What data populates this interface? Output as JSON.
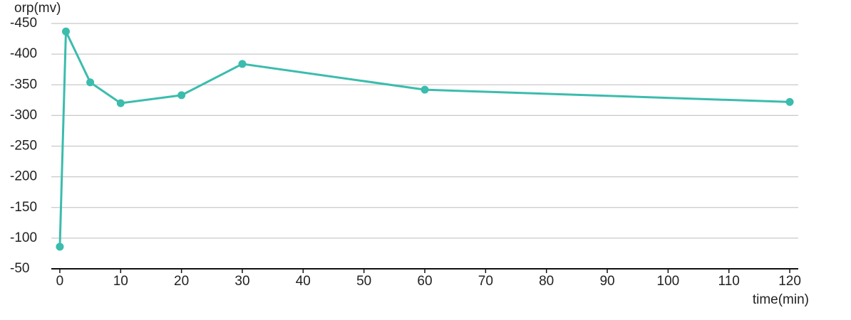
{
  "chart_data": {
    "type": "line",
    "y_label": "orp(mv)",
    "x_label": "time(min)",
    "x": [
      0,
      1,
      5,
      10,
      20,
      30,
      60,
      120
    ],
    "series": [
      {
        "name": "orp",
        "color": "#3bbcad",
        "values": [
          -86,
          -437,
          -354,
          -320,
          -333,
          -384,
          -342,
          -322
        ]
      }
    ],
    "xlim": [
      -1.4,
      121.4
    ],
    "xticks": [
      0,
      10,
      20,
      30,
      40,
      50,
      60,
      70,
      80,
      90,
      100,
      110,
      120
    ],
    "ylim": [
      -50,
      -450
    ],
    "yticks": [
      -450,
      -400,
      -350,
      -300,
      -250,
      -200,
      -150,
      -100,
      -50
    ],
    "grid": true
  }
}
